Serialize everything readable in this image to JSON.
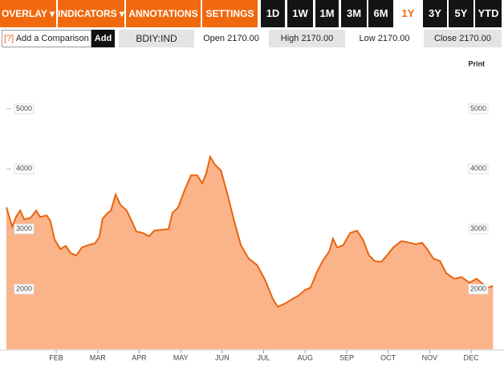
{
  "toolbar": {
    "menus": [
      "OVERLAY ▾",
      "INDICATORS ▾",
      "ANNOTATIONS ▾",
      "SETTINGS ▾"
    ],
    "ranges": [
      "1D",
      "1W",
      "1M",
      "3M",
      "6M",
      "1Y",
      "3Y",
      "5Y",
      "YTD"
    ]
  },
  "quote_bar": {
    "help": "[?]",
    "comparison": "Add a Comparison",
    "add": "Add",
    "ticker": "BDIY:IND",
    "open": "Open 2170.00",
    "high": "High 2170.00",
    "low": "Low 2170.00",
    "close": "Close 2170.00"
  },
  "print": "Print",
  "chart_data": {
    "type": "area",
    "color": "#e8650f",
    "fill": "#fbb38a",
    "x": [
      -0.2,
      -0.06,
      0.03,
      0.13,
      0.23,
      0.38,
      0.52,
      0.61,
      0.77,
      0.86,
      0.96,
      1.1,
      1.23,
      1.35,
      1.48,
      1.62,
      1.77,
      1.93,
      2.04,
      2.12,
      2.24,
      2.32,
      2.43,
      2.55,
      2.7,
      2.82,
      2.93,
      3.09,
      3.24,
      3.36,
      3.51,
      3.71,
      3.8,
      3.94,
      4.09,
      4.25,
      4.4,
      4.52,
      4.62,
      4.71,
      4.83,
      4.97,
      5.12,
      5.29,
      5.45,
      5.64,
      5.84,
      6.03,
      6.22,
      6.34,
      6.51,
      6.67,
      6.84,
      7.0,
      7.13,
      7.29,
      7.42,
      7.58,
      7.67,
      7.77,
      7.92,
      8.08,
      8.25,
      8.39,
      8.54,
      8.68,
      8.83,
      8.97,
      9.12,
      9.32,
      9.51,
      9.67,
      9.82,
      9.94,
      10.09,
      10.25,
      10.4,
      10.59,
      10.77,
      10.96,
      11.13,
      11.25,
      11.4,
      11.53
    ],
    "values": [
      3360,
      3040,
      3200,
      3307,
      3160,
      3187,
      3307,
      3200,
      3227,
      3133,
      2827,
      2667,
      2720,
      2600,
      2560,
      2693,
      2733,
      2760,
      2867,
      3173,
      3267,
      3307,
      3573,
      3400,
      3307,
      3133,
      2960,
      2933,
      2880,
      2973,
      2987,
      3000,
      3267,
      3360,
      3640,
      3893,
      3893,
      3760,
      3933,
      4200,
      4067,
      3973,
      3600,
      3133,
      2733,
      2507,
      2400,
      2160,
      1840,
      1707,
      1760,
      1827,
      1893,
      1987,
      2027,
      2293,
      2467,
      2627,
      2840,
      2693,
      2733,
      2933,
      2973,
      2827,
      2560,
      2467,
      2453,
      2560,
      2693,
      2800,
      2773,
      2747,
      2773,
      2667,
      2507,
      2467,
      2267,
      2173,
      2200,
      2107,
      2173,
      2107,
      2027,
      2053
    ],
    "xlim": [
      -0.2,
      11.56
    ],
    "xticks": [
      {
        "value": 1,
        "label": "FEB"
      },
      {
        "value": 2,
        "label": "MAR"
      },
      {
        "value": 3,
        "label": "APR"
      },
      {
        "value": 4,
        "label": "MAY"
      },
      {
        "value": 5,
        "label": "JUN"
      },
      {
        "value": 6,
        "label": "JUL"
      },
      {
        "value": 7,
        "label": "AUG"
      },
      {
        "value": 8,
        "label": "SEP"
      },
      {
        "value": 9,
        "label": "OCT"
      },
      {
        "value": 10,
        "label": "NOV"
      },
      {
        "value": 11,
        "label": "DEC"
      }
    ],
    "ylim": [
      1000,
      5900
    ],
    "yticks": [
      2000,
      3000,
      4000,
      5000
    ]
  }
}
